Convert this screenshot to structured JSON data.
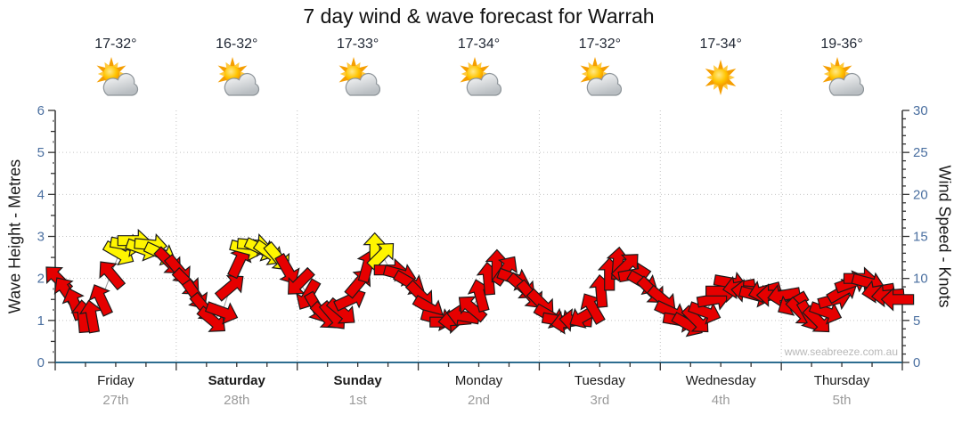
{
  "header": {
    "title": "7 day wind & wave forecast for Warrah"
  },
  "watermark": "www.seabreeze.com.au",
  "axes": {
    "left_title": "Wave Height - Metres",
    "right_title": "Wind Speed - Knots",
    "left_ticks": [
      0,
      1,
      2,
      3,
      4,
      5,
      6
    ],
    "right_ticks": [
      0,
      5,
      10,
      15,
      20,
      25,
      30
    ]
  },
  "days": [
    {
      "name": "Friday",
      "date": "27th",
      "temp": "17-32°",
      "icon": "partly-cloudy-icon",
      "bold": false
    },
    {
      "name": "Saturday",
      "date": "28th",
      "temp": "16-32°",
      "icon": "partly-cloudy-icon",
      "bold": true
    },
    {
      "name": "Sunday",
      "date": "1st",
      "temp": "17-33°",
      "icon": "partly-cloudy-icon",
      "bold": true
    },
    {
      "name": "Monday",
      "date": "2nd",
      "temp": "17-34°",
      "icon": "partly-cloudy-icon",
      "bold": false
    },
    {
      "name": "Tuesday",
      "date": "3rd",
      "temp": "17-32°",
      "icon": "partly-cloudy-icon",
      "bold": false
    },
    {
      "name": "Wednesday",
      "date": "4th",
      "temp": "17-34°",
      "icon": "sunny-icon",
      "bold": false
    },
    {
      "name": "Thursday",
      "date": "5th",
      "temp": "19-36°",
      "icon": "partly-cloudy-icon",
      "bold": false
    }
  ],
  "colors": {
    "arrow_red": "#e60000",
    "arrow_yellow": "#fff500",
    "arrow_outline": "#1a1a1a",
    "grid": "#c3c3c3",
    "tick_label": "#4a6fa0",
    "axis_line": "#333333",
    "x_axis_line": "#2d6d90",
    "connector_line": "#9a9a9a",
    "date_label": "#9a9a9a",
    "watermark": "#b8b8b8"
  },
  "chart_data": {
    "type": "scatter",
    "subtype": "wind-arrow-timeseries",
    "title": "7 day wind & wave forecast for Warrah",
    "x_unit": "days",
    "x_range": [
      0,
      7
    ],
    "x_tick_labels": [
      "Friday 27th",
      "Saturday 28th",
      "Sunday 1st",
      "Monday 2nd",
      "Tuesday 3rd",
      "Wednesday 4th",
      "Thursday 5th"
    ],
    "left_axis": {
      "label": "Wave Height - Metres",
      "range": [
        0,
        6
      ]
    },
    "right_axis": {
      "label": "Wind Speed - Knots",
      "range": [
        0,
        30
      ]
    },
    "grid": true,
    "note": "each arrow = [time_in_days_from_Friday_00h, wind_speed_knots, direction_deg_ccw_from_east, color R=red Y=yellow]",
    "arrows": [
      [
        0.02,
        10,
        135,
        "R"
      ],
      [
        0.09,
        8.5,
        125,
        "R"
      ],
      [
        0.16,
        7,
        110,
        "R"
      ],
      [
        0.23,
        5.5,
        95,
        "R"
      ],
      [
        0.3,
        5.5,
        100,
        "R"
      ],
      [
        0.38,
        7.5,
        115,
        "R"
      ],
      [
        0.46,
        10.5,
        130,
        "R"
      ],
      [
        0.53,
        13,
        -30,
        "Y"
      ],
      [
        0.59,
        14,
        -10,
        "Y"
      ],
      [
        0.65,
        14.5,
        0,
        "Y"
      ],
      [
        0.72,
        13.5,
        -20,
        "Y"
      ],
      [
        0.79,
        14,
        -5,
        "Y"
      ],
      [
        0.87,
        13,
        -25,
        "Y"
      ],
      [
        0.94,
        12,
        -45,
        "R"
      ],
      [
        1.02,
        11,
        -50,
        "R"
      ],
      [
        1.09,
        9.5,
        -45,
        "R"
      ],
      [
        1.16,
        8,
        -55,
        "R"
      ],
      [
        1.23,
        6.5,
        -50,
        "R"
      ],
      [
        1.3,
        5,
        -40,
        "R"
      ],
      [
        1.38,
        6,
        -20,
        "R"
      ],
      [
        1.45,
        9,
        40,
        "R"
      ],
      [
        1.52,
        12,
        65,
        "R"
      ],
      [
        1.58,
        13.5,
        -15,
        "Y"
      ],
      [
        1.64,
        14,
        -5,
        "Y"
      ],
      [
        1.7,
        13.5,
        -25,
        "Y"
      ],
      [
        1.77,
        13,
        -35,
        "Y"
      ],
      [
        1.84,
        12.5,
        -50,
        "Y"
      ],
      [
        1.92,
        11,
        -60,
        "R"
      ],
      [
        2.02,
        9.5,
        -135,
        "R"
      ],
      [
        2.09,
        8,
        -120,
        "R"
      ],
      [
        2.16,
        6.5,
        -60,
        "R"
      ],
      [
        2.23,
        5.5,
        -45,
        "R"
      ],
      [
        2.3,
        5.5,
        -50,
        "R"
      ],
      [
        2.37,
        6,
        -40,
        "R"
      ],
      [
        2.44,
        7.5,
        25,
        "R"
      ],
      [
        2.51,
        9.5,
        50,
        "R"
      ],
      [
        2.58,
        11.5,
        75,
        "R"
      ],
      [
        2.64,
        13.5,
        90,
        "Y"
      ],
      [
        2.7,
        12.8,
        45,
        "Y"
      ],
      [
        2.77,
        11,
        0,
        "R"
      ],
      [
        2.85,
        10.5,
        -15,
        "R"
      ],
      [
        2.93,
        9.5,
        -30,
        "R"
      ],
      [
        3.02,
        8,
        -45,
        "R"
      ],
      [
        3.09,
        6.5,
        -30,
        "R"
      ],
      [
        3.16,
        5.2,
        -15,
        "R"
      ],
      [
        3.23,
        4.8,
        0,
        "R"
      ],
      [
        3.3,
        5,
        -175,
        "R"
      ],
      [
        3.37,
        5.5,
        170,
        "R"
      ],
      [
        3.44,
        6.5,
        140,
        "R"
      ],
      [
        3.51,
        8,
        105,
        "R"
      ],
      [
        3.58,
        10,
        95,
        "R"
      ],
      [
        3.65,
        11.5,
        90,
        "R"
      ],
      [
        3.72,
        11,
        55,
        "R"
      ],
      [
        3.79,
        10,
        -20,
        "R"
      ],
      [
        3.86,
        9,
        -40,
        "R"
      ],
      [
        3.93,
        8,
        -50,
        "R"
      ],
      [
        4.02,
        7,
        -45,
        "R"
      ],
      [
        4.09,
        5.5,
        -30,
        "R"
      ],
      [
        4.16,
        5,
        -10,
        "R"
      ],
      [
        4.23,
        4.8,
        -170,
        "R"
      ],
      [
        4.3,
        5,
        175,
        "R"
      ],
      [
        4.37,
        5.5,
        -150,
        "R"
      ],
      [
        4.44,
        6.5,
        120,
        "R"
      ],
      [
        4.51,
        8.5,
        95,
        "R"
      ],
      [
        4.58,
        10.5,
        90,
        "R"
      ],
      [
        4.65,
        11.8,
        85,
        "R"
      ],
      [
        4.72,
        11.5,
        45,
        "R"
      ],
      [
        4.79,
        10.5,
        10,
        "R"
      ],
      [
        4.86,
        9.5,
        -30,
        "R"
      ],
      [
        4.93,
        8.5,
        -45,
        "R"
      ],
      [
        5.02,
        7.5,
        -40,
        "R"
      ],
      [
        5.09,
        6,
        -25,
        "R"
      ],
      [
        5.16,
        5,
        -10,
        "R"
      ],
      [
        5.23,
        4.5,
        -30,
        "R"
      ],
      [
        5.3,
        5,
        -45,
        "R"
      ],
      [
        5.37,
        6,
        -20,
        "R"
      ],
      [
        5.44,
        7.5,
        10,
        "R"
      ],
      [
        5.51,
        8.5,
        0,
        "R"
      ],
      [
        5.58,
        9.5,
        -10,
        "R"
      ],
      [
        5.65,
        9,
        -170,
        "R"
      ],
      [
        5.72,
        8.5,
        175,
        "R"
      ],
      [
        5.79,
        8,
        -15,
        "R"
      ],
      [
        5.86,
        8.5,
        -165,
        "R"
      ],
      [
        5.93,
        8,
        180,
        "R"
      ],
      [
        6.02,
        8,
        -170,
        "R"
      ],
      [
        6.09,
        7,
        -150,
        "R"
      ],
      [
        6.16,
        6,
        -45,
        "R"
      ],
      [
        6.23,
        5.5,
        -60,
        "R"
      ],
      [
        6.3,
        5,
        -45,
        "R"
      ],
      [
        6.37,
        6,
        -20,
        "R"
      ],
      [
        6.44,
        7.5,
        15,
        "R"
      ],
      [
        6.51,
        8.5,
        30,
        "R"
      ],
      [
        6.58,
        9.5,
        20,
        "R"
      ],
      [
        6.65,
        10,
        0,
        "R"
      ],
      [
        6.72,
        9.5,
        -15,
        "R"
      ],
      [
        6.8,
        8.5,
        -170,
        "R"
      ],
      [
        6.88,
        8,
        -175,
        "R"
      ],
      [
        6.96,
        7.5,
        180,
        "R"
      ]
    ]
  }
}
